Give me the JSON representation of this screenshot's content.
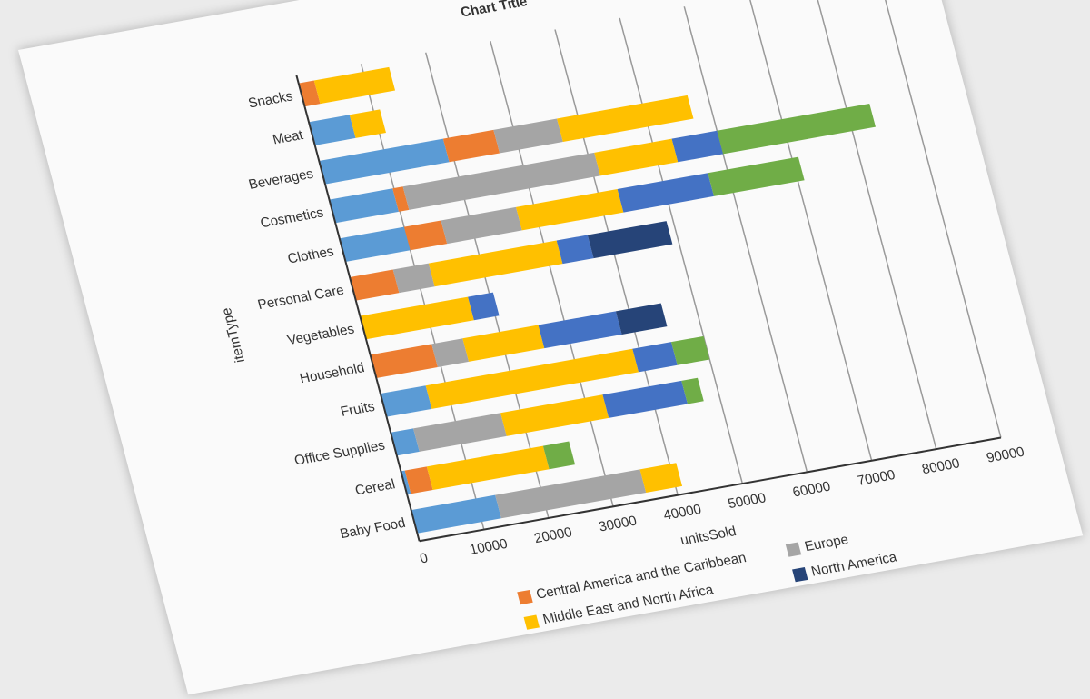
{
  "chart_data": {
    "type": "stacked-bar-horizontal",
    "title": "Chart Title",
    "x_label": "unitsSold",
    "y_label": "itemType",
    "categories": [
      "Baby Food",
      "Cereal",
      "Office Supplies",
      "Fruits",
      "Household",
      "Vegetables",
      "Personal Care",
      "Clothes",
      "Cosmetics",
      "Beverages",
      "Meat",
      "Snacks"
    ],
    "series": [
      {
        "color": "#5b9bd5",
        "values": [
          13000,
          600,
          3500,
          7000,
          null,
          null,
          null,
          10000,
          9800,
          19200,
          6300,
          null
        ]
      },
      {
        "name": "Central America and the Caribbean",
        "color": "#ed7d31",
        "values": [
          null,
          3400,
          null,
          null,
          9500,
          null,
          6700,
          5700,
          1600,
          7800,
          null,
          2400
        ]
      },
      {
        "name": "Europe",
        "color": "#a5a5a5",
        "values": [
          22400,
          null,
          13500,
          null,
          4800,
          null,
          5500,
          11600,
          29600,
          9800,
          null,
          null
        ]
      },
      {
        "name": "Middle East and North Africa",
        "color": "#ffc000",
        "values": [
          5600,
          18000,
          15800,
          32000,
          11700,
          16700,
          19800,
          15700,
          12000,
          20200,
          4700,
          11600
        ]
      },
      {
        "color": "#4472c4",
        "values": [
          null,
          null,
          12200,
          6000,
          12000,
          3900,
          4800,
          14000,
          7000,
          null,
          null,
          null
        ]
      },
      {
        "color": "#70ad47",
        "values": [
          null,
          4000,
          2500,
          5000,
          null,
          null,
          null,
          14000,
          23600,
          null,
          null,
          null
        ]
      },
      {
        "name": "North America",
        "color": "#264478",
        "values": [
          null,
          null,
          null,
          null,
          7000,
          null,
          12200,
          null,
          null,
          null,
          null,
          null
        ]
      }
    ],
    "xlim": [
      0,
      90000
    ],
    "xticks": [
      0,
      10000,
      20000,
      30000,
      40000,
      50000,
      60000,
      70000,
      80000,
      90000
    ],
    "grid": true
  }
}
